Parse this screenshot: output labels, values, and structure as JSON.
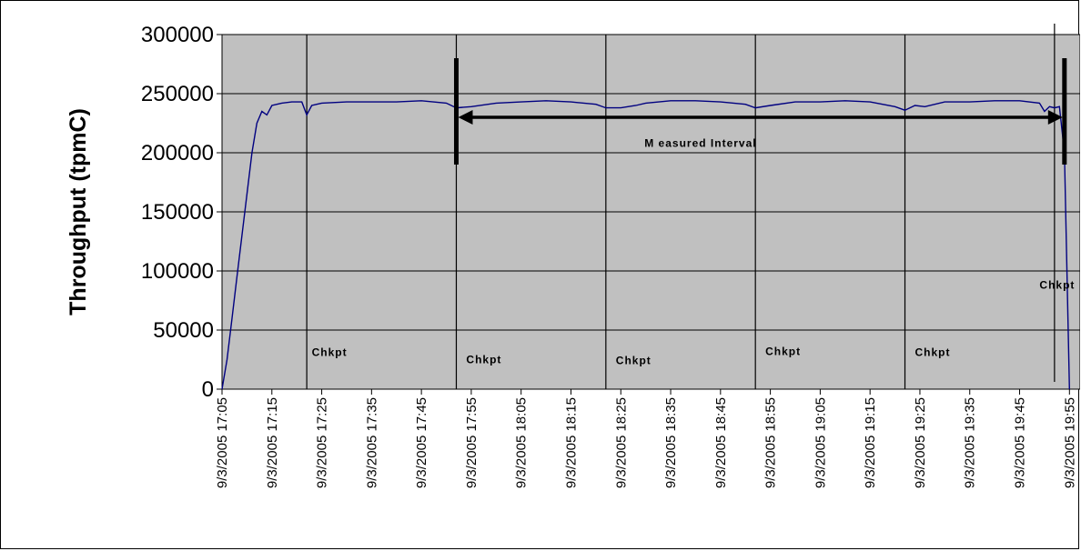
{
  "chart_data": {
    "type": "line",
    "ylabel": "Throughput (tpmC)",
    "xlabel": "",
    "ylim": [
      0,
      300000
    ],
    "yticks": [
      "0",
      "50000",
      "100000",
      "150000",
      "200000",
      "250000",
      "300000"
    ],
    "xticks": [
      "9/3/2005 17:05",
      "9/3/2005 17:15",
      "9/3/2005 17:25",
      "9/3/2005 17:35",
      "9/3/2005 17:45",
      "9/3/2005 17:55",
      "9/3/2005 18:05",
      "9/3/2005 18:15",
      "9/3/2005 18:25",
      "9/3/2005 18:35",
      "9/3/2005 18:45",
      "9/3/2005 18:55",
      "9/3/2005 19:05",
      "9/3/2005 19:15",
      "9/3/2005 19:25",
      "9/3/2005 19:35",
      "9/3/2005 19:45",
      "9/3/2005 19:55"
    ],
    "grid": "horizontal",
    "background": "#c0c0c0",
    "line_color": "#000080",
    "series": [
      {
        "x": [
          "9/3/2005 17:05",
          "9/3/2005 17:06",
          "9/3/2005 17:07",
          "9/3/2005 17:08",
          "9/3/2005 17:09",
          "9/3/2005 17:10",
          "9/3/2005 17:11",
          "9/3/2005 17:12",
          "9/3/2005 17:13",
          "9/3/2005 17:14",
          "9/3/2005 17:15",
          "9/3/2005 17:16",
          "9/3/2005 17:17",
          "9/3/2005 17:19",
          "9/3/2005 17:21",
          "9/3/2005 17:22",
          "9/3/2005 17:23",
          "9/3/2005 17:24",
          "9/3/2005 17:25",
          "9/3/2005 17:30",
          "9/3/2005 17:35",
          "9/3/2005 17:40",
          "9/3/2005 17:45",
          "9/3/2005 17:50",
          "9/3/2005 17:52",
          "9/3/2005 17:55",
          "9/3/2005 18:00",
          "9/3/2005 18:05",
          "9/3/2005 18:10",
          "9/3/2005 18:15",
          "9/3/2005 18:20",
          "9/3/2005 18:22",
          "9/3/2005 18:25",
          "9/3/2005 18:28",
          "9/3/2005 18:30",
          "9/3/2005 18:35",
          "9/3/2005 18:40",
          "9/3/2005 18:45",
          "9/3/2005 18:50",
          "9/3/2005 18:52",
          "9/3/2005 18:55",
          "9/3/2005 19:00",
          "9/3/2005 19:05",
          "9/3/2005 19:10",
          "9/3/2005 19:15",
          "9/3/2005 19:20",
          "9/3/2005 19:22",
          "9/3/2005 19:24",
          "9/3/2005 19:26",
          "9/3/2005 19:30",
          "9/3/2005 19:35",
          "9/3/2005 19:40",
          "9/3/2005 19:45",
          "9/3/2005 19:49",
          "9/3/2005 19:50",
          "9/3/2005 19:51",
          "9/3/2005 19:52",
          "9/3/2005 19:53",
          "9/3/2005 19:54",
          "9/3/2005 19:55"
        ],
        "y": [
          0,
          25000,
          60000,
          95000,
          130000,
          165000,
          200000,
          225000,
          235000,
          232000,
          240000,
          241000,
          242000,
          243000,
          243000,
          232000,
          240000,
          241000,
          242000,
          243000,
          243000,
          243000,
          244000,
          242000,
          238000,
          239000,
          242000,
          243000,
          244000,
          243000,
          241000,
          238000,
          238000,
          240000,
          242000,
          244000,
          244000,
          243000,
          241000,
          238000,
          240000,
          243000,
          243000,
          244000,
          243000,
          239000,
          236000,
          240000,
          239000,
          243000,
          243000,
          244000,
          244000,
          242000,
          235000,
          239000,
          238000,
          239000,
          200000,
          0
        ]
      }
    ],
    "annotations": [
      {
        "text": "Chkpt",
        "x": "9/3/2005 17:23",
        "y": 28000
      },
      {
        "text": "Chkpt",
        "x": "9/3/2005 17:54",
        "y": 22000
      },
      {
        "text": "Chkpt",
        "x": "9/3/2005 18:24",
        "y": 21000
      },
      {
        "text": "Chkpt",
        "x": "9/3/2005 18:54",
        "y": 29000
      },
      {
        "text": "Chkpt",
        "x": "9/3/2005 19:24",
        "y": 28000
      },
      {
        "text": "Chkpt",
        "x": "9/3/2005 19:49",
        "y": 85000
      },
      {
        "text": "M easured Interval",
        "x": "9/3/2005 18:41",
        "y": 205000
      }
    ],
    "checkpoint_lines": [
      "9/3/2005 17:22",
      "9/3/2005 17:52",
      "9/3/2005 18:22",
      "9/3/2005 18:52",
      "9/3/2005 19:22",
      "9/3/2005 19:52"
    ],
    "measured_interval": {
      "start": "9/3/2005 17:52",
      "end": "9/3/2005 19:54"
    }
  }
}
